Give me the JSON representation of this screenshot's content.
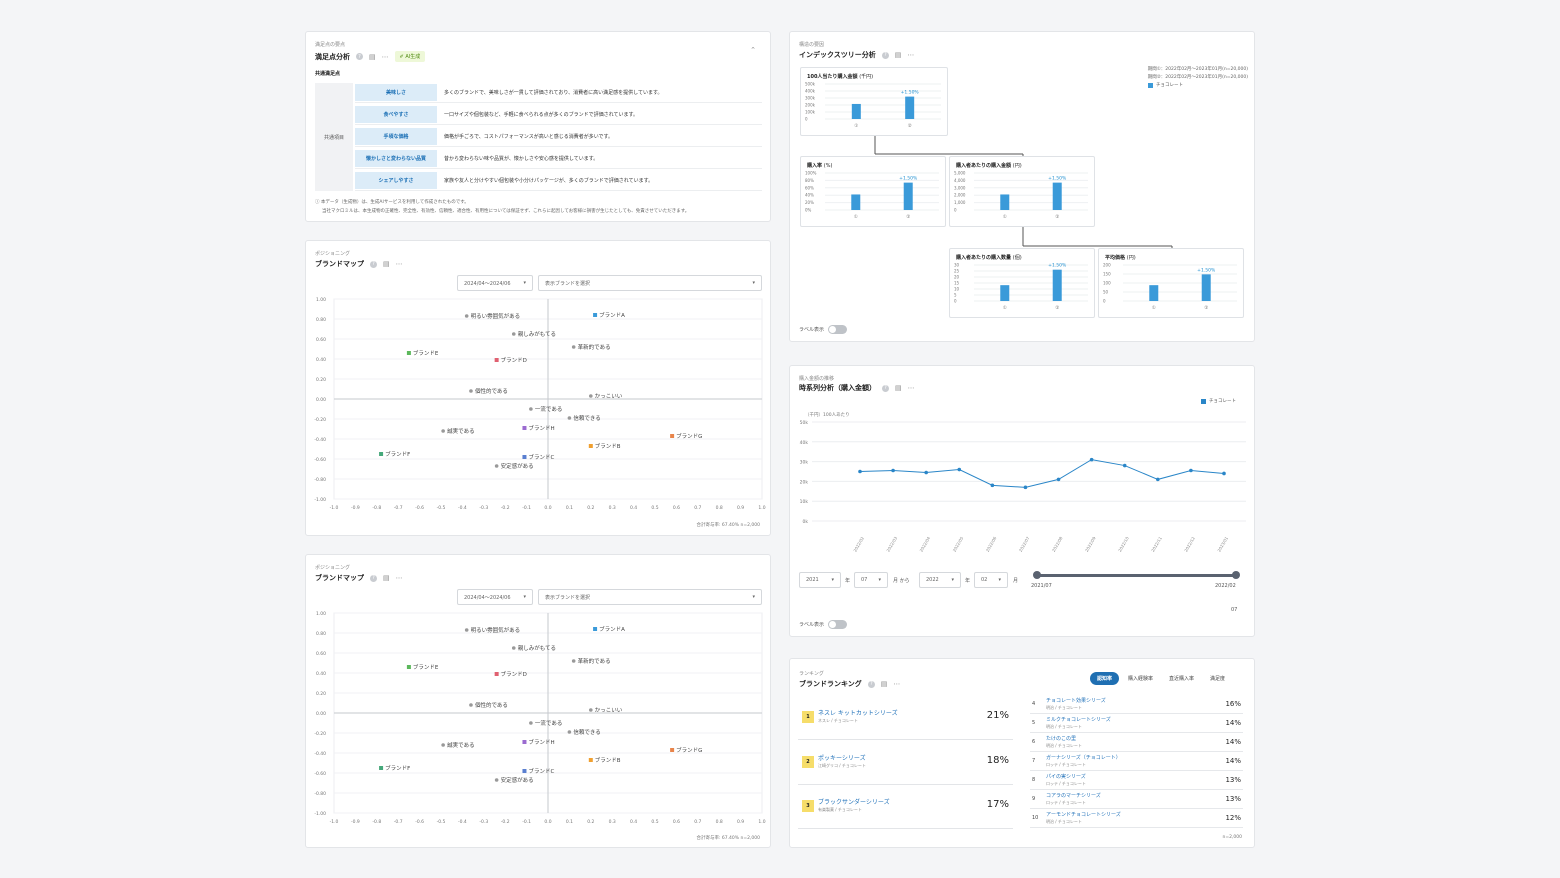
{
  "satisfaction": {
    "eyebrow": "満足点の要点",
    "title": "満足点分析",
    "ai_badge": "AI生成",
    "section_label": "共通満足点",
    "group_label": "共通項目",
    "rows": [
      {
        "key": "美味しさ",
        "value": "多くのブランドで、美味しさが一貫して評価されており、消費者に高い満足感を提供しています。"
      },
      {
        "key": "食べやすさ",
        "value": "一口サイズや個包装など、手軽に食べられる点が多くのブランドで評価されています。"
      },
      {
        "key": "手頃な価格",
        "value": "価格が手ごろで、コストパフォーマンスが高いと感じる消費者が多いです。"
      },
      {
        "key": "懐かしさと変わらない品質",
        "value": "昔から変わらない味や品質が、懐かしさや安心感を提供しています。"
      },
      {
        "key": "シェアしやすさ",
        "value": "家族や友人と分けやすい個包装や小分けパッケージが、多くのブランドで評価されています。"
      }
    ],
    "note1": "ⓘ 本データ（生成物）は、生成AIサービスを利用して作成されたものです。",
    "note2": "当社マクロミルは、本生成物の正確性、完全性、有効性、信頼性、適合性、有用性については保証せず、これらに起因してお客様に損害が生じたとしても、免責させていただきます。"
  },
  "brandmaps": [
    {
      "eyebrow": "ポジショニング",
      "title": "ブランドマップ",
      "period": "2024/04〜2024/06",
      "brand_select": "表示ブランドを選択",
      "footer": "合計寄与率: 67.40%  n=2,000"
    },
    {
      "eyebrow": "ポジショニング",
      "title": "ブランドマップ",
      "period": "2024/04〜2024/06",
      "brand_select": "表示ブランドを選択",
      "footer": "合計寄与率: 67.40%  n=2,000"
    }
  ],
  "map_data": {
    "x_ticks": [
      "-1.0",
      "-0.9",
      "-0.8",
      "-0.7",
      "-0.6",
      "-0.5",
      "-0.4",
      "-0.3",
      "-0.2",
      "-0.1",
      "0.0",
      "0.1",
      "0.2",
      "0.3",
      "0.4",
      "0.5",
      "0.6",
      "0.7",
      "0.8",
      "0.9",
      "1.0"
    ],
    "y_ticks": [
      "1.00",
      "0.80",
      "0.60",
      "0.40",
      "0.20",
      "0.00",
      "-0.20",
      "-0.40",
      "-0.60",
      "-0.80",
      "-1.00"
    ],
    "brands": [
      {
        "name": "ブランドA",
        "x": 0.22,
        "y": 0.84,
        "color": "#3a9ad9"
      },
      {
        "name": "ブランドB",
        "x": 0.2,
        "y": -0.47,
        "color": "#f0a030"
      },
      {
        "name": "ブランドC",
        "x": -0.11,
        "y": -0.58,
        "color": "#5a7fd0"
      },
      {
        "name": "ブランドD",
        "x": -0.24,
        "y": 0.39,
        "color": "#e06070"
      },
      {
        "name": "ブランドE",
        "x": -0.65,
        "y": 0.46,
        "color": "#5cb85c"
      },
      {
        "name": "ブランドF",
        "x": -0.78,
        "y": -0.55,
        "color": "#45a87a"
      },
      {
        "name": "ブランドG",
        "x": 0.58,
        "y": -0.37,
        "color": "#e8844a"
      },
      {
        "name": "ブランドH",
        "x": -0.11,
        "y": -0.29,
        "color": "#9b6bd0"
      }
    ],
    "attributes": [
      {
        "name": "明るい雰囲気がある",
        "x": -0.38,
        "y": 0.83
      },
      {
        "name": "親しみがもてる",
        "x": -0.16,
        "y": 0.65
      },
      {
        "name": "革新的である",
        "x": 0.12,
        "y": 0.52
      },
      {
        "name": "個性的である",
        "x": -0.36,
        "y": 0.08
      },
      {
        "name": "かっこいい",
        "x": 0.2,
        "y": 0.03
      },
      {
        "name": "一流である",
        "x": -0.08,
        "y": -0.1
      },
      {
        "name": "信頼できる",
        "x": 0.1,
        "y": -0.19
      },
      {
        "name": "誠実である",
        "x": -0.49,
        "y": -0.32
      },
      {
        "name": "安定感がある",
        "x": -0.24,
        "y": -0.67
      }
    ]
  },
  "index_tree": {
    "eyebrow": "構造の要因",
    "title": "インデックスツリー分析",
    "period1": "期間①：2022年02月〜2023年01月(n=20,000)",
    "period2": "期間②：2022年02月〜2023年01月(n=20,000)",
    "legend": "チョコレート",
    "label_toggle": "ラベル表示",
    "boxes": [
      {
        "title": "100人当たり購入金額",
        "unit": "(千円)",
        "ticks": [
          "500k",
          "400k",
          "300k",
          "200k",
          "100k",
          "0"
        ],
        "values": [
          0.43,
          0.64
        ],
        "delta": "+1.50%"
      },
      {
        "title": "購入率",
        "unit": "(%)",
        "ticks": [
          "100%",
          "80%",
          "60%",
          "40%",
          "20%",
          "0%"
        ],
        "values": [
          0.42,
          0.74
        ],
        "delta": "+1.50%"
      },
      {
        "title": "購入者あたりの購入金額",
        "unit": "(円)",
        "ticks": [
          "5,000",
          "4,000",
          "3,000",
          "2,000",
          "1,000",
          "0"
        ],
        "values": [
          0.42,
          0.74
        ],
        "delta": "+1.50%"
      },
      {
        "title": "購入者あたりの購入数量",
        "unit": "(個)",
        "ticks": [
          "30",
          "25",
          "20",
          "15",
          "10",
          "5",
          "0"
        ],
        "values": [
          0.44,
          0.87
        ],
        "delta": "+1.50%"
      },
      {
        "title": "平均価格",
        "unit": "(円)",
        "ticks": [
          "200",
          "150",
          "100",
          "50",
          "0"
        ],
        "values": [
          0.44,
          0.74
        ],
        "delta": "+1.50%"
      }
    ],
    "period_markers": [
      "①",
      "②"
    ]
  },
  "timeseries": {
    "eyebrow": "購入金額の推移",
    "title": "時系列分析（購入金額）",
    "unit_label": "（千円）100人あたり",
    "legend": "チョコレート",
    "from_year": "2021",
    "from_month": "07",
    "to_year": "2022",
    "to_month": "02",
    "year_suffix": "年",
    "month_suffix": "月",
    "from_word": "から",
    "slider_start": "2021/07",
    "slider_end": "2022/02",
    "slider_value": "07",
    "label_toggle": "ラベル表示",
    "chart_data": {
      "type": "line",
      "x": [
        "2022/02",
        "2022/03",
        "2022/04",
        "2022/05",
        "2022/06",
        "2022/07",
        "2022/08",
        "2022/09",
        "2022/10",
        "2022/11",
        "2022/12",
        "2023/01"
      ],
      "series": [
        {
          "name": "チョコレート",
          "values": [
            25000,
            25500,
            24500,
            26000,
            18000,
            17000,
            21000,
            31000,
            28000,
            21000,
            25500,
            24000
          ]
        }
      ],
      "ylabel": "（千円）100人あたり",
      "yticks": [
        "50k",
        "40k",
        "30k",
        "20k",
        "10k",
        "0k"
      ],
      "ylim": [
        0,
        50000
      ]
    }
  },
  "ranking": {
    "eyebrow": "ランキング",
    "title": "ブランドランキング",
    "tabs": [
      "認知率",
      "購入経験率",
      "直近購入率",
      "満足度"
    ],
    "top": [
      {
        "rank": "1",
        "name": "ネスレ キットカットシリーズ",
        "maker": "ネスレ / チョコレート",
        "pct": "21%"
      },
      {
        "rank": "2",
        "name": "ポッキーシリーズ",
        "maker": "江崎グリコ / チョコレート",
        "pct": "18%"
      },
      {
        "rank": "3",
        "name": "ブラックサンダーシリーズ",
        "maker": "有楽製菓 / チョコレート",
        "pct": "17%"
      }
    ],
    "rest": [
      {
        "rank": "4",
        "name": "チョコレート効果シリーズ",
        "maker": "明治 / チョコレート",
        "pct": "16%"
      },
      {
        "rank": "5",
        "name": "ミルクチョコレートシリーズ",
        "maker": "明治 / チョコレート",
        "pct": "14%"
      },
      {
        "rank": "6",
        "name": "たけのこの里",
        "maker": "明治 / チョコレート",
        "pct": "14%"
      },
      {
        "rank": "7",
        "name": "ガーナシリーズ（チョコレート）",
        "maker": "ロッテ / チョコレート",
        "pct": "14%"
      },
      {
        "rank": "8",
        "name": "パイの実シリーズ",
        "maker": "ロッテ / チョコレート",
        "pct": "13%"
      },
      {
        "rank": "9",
        "name": "コアラのマーチシリーズ",
        "maker": "ロッテ / チョコレート",
        "pct": "13%"
      },
      {
        "rank": "10",
        "name": "アーモンドチョコレートシリーズ",
        "maker": "明治 / チョコレート",
        "pct": "12%"
      }
    ],
    "footer": "n=2,000"
  },
  "icons": {
    "help": "help-icon",
    "table": "table-icon",
    "more": "more-icon",
    "collapse": "chevron-up-icon",
    "dropdown": "chevron-down-icon"
  },
  "colors": {
    "accent": "#1f6fb2",
    "bar": "#3a9ad9",
    "line": "#2a86c8",
    "key_bg": "#dcecf8"
  }
}
